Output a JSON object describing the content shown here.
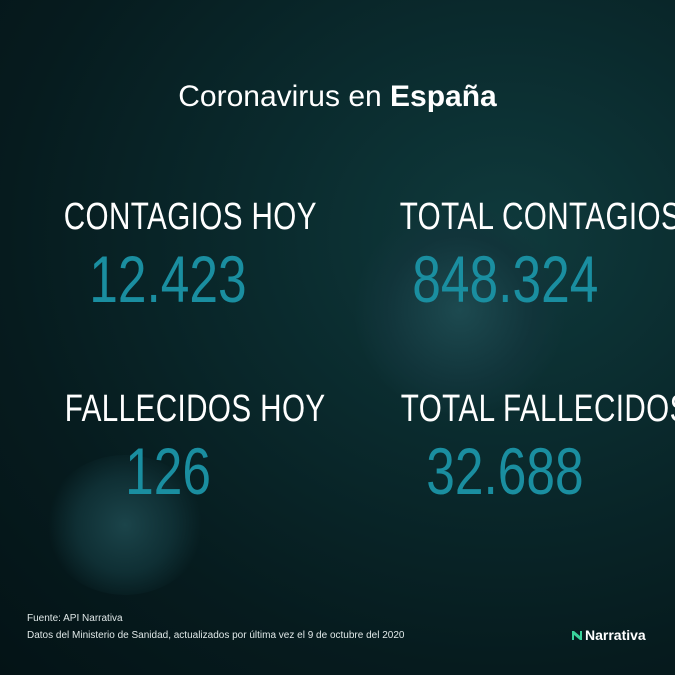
{
  "title": {
    "prefix": "Coronavirus en ",
    "bold": "España"
  },
  "stats": [
    {
      "label": "CONTAGIOS HOY",
      "value": "12.423"
    },
    {
      "label": "TOTAL CONTAGIOS",
      "value": "848.324"
    },
    {
      "label": "FALLECIDOS HOY",
      "value": "126"
    },
    {
      "label": "TOTAL FALLECIDOS",
      "value": "32.688"
    }
  ],
  "footer": {
    "source": "Fuente: API Narrativa",
    "note": "Datos del Ministerio de Sanidad, actualizados por última vez el  9 de octubre del 2020"
  },
  "logo": {
    "text": "Narrativa",
    "icon": "narrativa-logo-icon",
    "accent": "#3ad29a"
  },
  "colors": {
    "value": "#1a8ea0",
    "background": "#061b1e"
  }
}
